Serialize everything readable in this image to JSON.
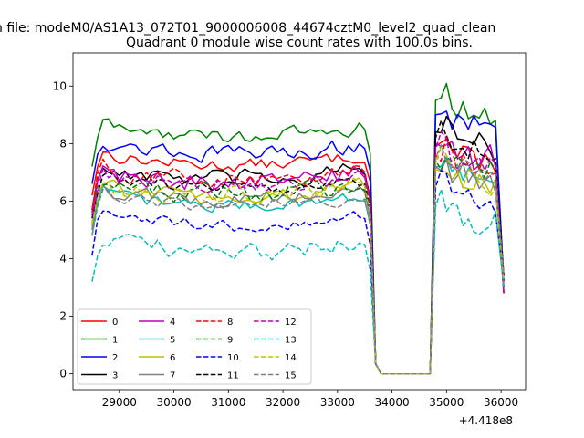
{
  "figure": {
    "suptitle": "n file: modeM0/AS1A13_072T01_9000006008_44674cztM0_level2_quad_clean",
    "title": "Quadrant 0 module wise count rates with 100.0s bins.",
    "offset_label": "+4.418e8"
  },
  "chart_data": {
    "type": "line",
    "title": "Quadrant 0 module wise count rates with 100.0s bins.",
    "x_offset_text": "+4.418e8",
    "xlabel": "",
    "ylabel": "",
    "xlim": [
      28150,
      36450
    ],
    "ylim": [
      -0.55,
      11.15
    ],
    "x_ticks": [
      29000,
      30000,
      31000,
      32000,
      33000,
      34000,
      35000,
      36000
    ],
    "y_ticks": [
      0,
      2,
      4,
      6,
      8,
      10
    ],
    "grid": false,
    "legend_position": "lower left",
    "legend_columns": 4,
    "series": [
      {
        "name": "0",
        "color": "#ff0000",
        "dash": "solid",
        "seg1_level": 7.6,
        "seg2_level": 7.8
      },
      {
        "name": "1",
        "color": "#008000",
        "dash": "solid",
        "seg1_level": 8.6,
        "seg2_level": 9.4
      },
      {
        "name": "2",
        "color": "#0000ff",
        "dash": "solid",
        "seg1_level": 8.0,
        "seg2_level": 8.9
      },
      {
        "name": "3",
        "color": "#000000",
        "dash": "solid",
        "seg1_level": 7.1,
        "seg2_level": 8.3
      },
      {
        "name": "4",
        "color": "#bf00bf",
        "dash": "solid",
        "seg1_level": 7.0,
        "seg2_level": 7.9
      },
      {
        "name": "5",
        "color": "#00bfbf",
        "dash": "solid",
        "seg1_level": 6.2,
        "seg2_level": 7.1
      },
      {
        "name": "6",
        "color": "#bfbf00",
        "dash": "solid",
        "seg1_level": 6.5,
        "seg2_level": 7.0
      },
      {
        "name": "7",
        "color": "#808080",
        "dash": "solid",
        "seg1_level": 6.4,
        "seg2_level": 7.1
      },
      {
        "name": "8",
        "color": "#ff0000",
        "dash": "dashed",
        "seg1_level": 7.1,
        "seg2_level": 7.5
      },
      {
        "name": "9",
        "color": "#008000",
        "dash": "dashed",
        "seg1_level": 6.6,
        "seg2_level": 7.3
      },
      {
        "name": "10",
        "color": "#0000ff",
        "dash": "dashed",
        "seg1_level": 5.5,
        "seg2_level": 6.4
      },
      {
        "name": "11",
        "color": "#000000",
        "dash": "dashed",
        "seg1_level": 6.8,
        "seg2_level": 8.1
      },
      {
        "name": "12",
        "color": "#bf00bf",
        "dash": "dashed",
        "seg1_level": 6.9,
        "seg2_level": 7.7
      },
      {
        "name": "13",
        "color": "#00bfbf",
        "dash": "dashed",
        "seg1_level": 4.6,
        "seg2_level": 5.7
      },
      {
        "name": "14",
        "color": "#bfbf00",
        "dash": "dashed",
        "seg1_level": 6.6,
        "seg2_level": 7.2
      },
      {
        "name": "15",
        "color": "#808080",
        "dash": "dashed",
        "seg1_level": 6.2,
        "seg2_level": 7.4
      }
    ],
    "time_segments": [
      {
        "x_start": 28500,
        "x_end": 33600,
        "description": "active"
      },
      {
        "x_start": 33700,
        "x_end": 34700,
        "value": 0.0
      },
      {
        "x_start": 34700,
        "x_end": 36050,
        "description": "active"
      }
    ]
  }
}
